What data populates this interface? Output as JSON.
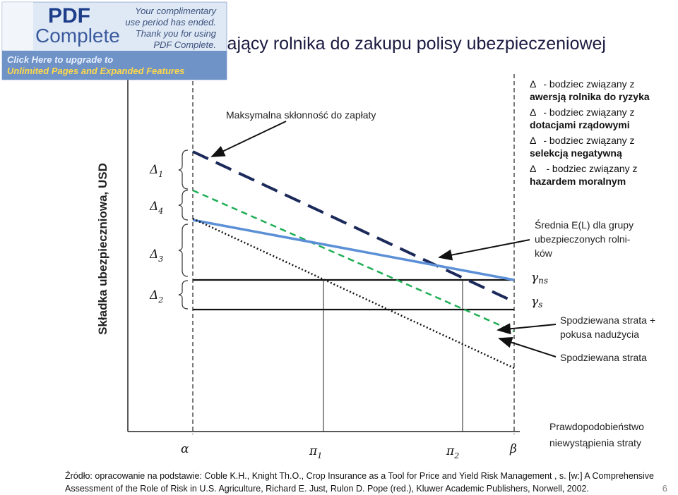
{
  "title": "iający rolnika do zakupu polisy ubezpieczeniowej",
  "banner": {
    "logo_top": "PDF",
    "logo_bottom": "Complete",
    "notice": [
      "Your complimentary",
      "use period has ended.",
      "Thank you for using",
      "PDF Complete."
    ],
    "upgrade": [
      "Click Here to upgrade to",
      "Unlimited Pages and Expanded Features"
    ]
  },
  "legend": [
    {
      "symbol": "Δ",
      "text": "- bodziec związany z",
      "bold": "awersją rolnika do ryzyka"
    },
    {
      "symbol": "Δ",
      "text": "- bodziec związany z",
      "bold": "dotacjami rządowymi"
    },
    {
      "symbol": "Δ",
      "text": "- bodziec związany z",
      "bold": "selekcją negatywną"
    },
    {
      "symbol": "Δ",
      "text": "- bodziec związany z",
      "bold": "hazardem moralnym"
    }
  ],
  "y_axis_label": "Składka ubezpieczniowa, USD",
  "braces": [
    {
      "symbol": "Δ",
      "sub": "1"
    },
    {
      "symbol": "Δ",
      "sub": "4"
    },
    {
      "symbol": "Δ",
      "sub": "3"
    },
    {
      "symbol": "Δ",
      "sub": "2"
    }
  ],
  "annotations": {
    "max": "Maksymalna skłonność do zapłaty",
    "mean": [
      "Średnia  E(L)  dla  grupy",
      "ubezpieczonych      rolni-",
      "ków"
    ],
    "gamma_ns": {
      "symbol": "γ",
      "sub": "ns"
    },
    "gamma_s": {
      "symbol": "γ",
      "sub": "s"
    },
    "hazard": [
      "Spodziewana strata +",
      "pokusa nadużycia"
    ],
    "loss": "Spodziewana strata",
    "x_axis": [
      "Prawdopodobieństwo",
      "niewystąpienia straty"
    ]
  },
  "x_labels": [
    {
      "symbol": "α",
      "sub": ""
    },
    {
      "symbol": "π",
      "sub": "1"
    },
    {
      "symbol": "π",
      "sub": "2"
    },
    {
      "symbol": "β",
      "sub": ""
    }
  ],
  "source": [
    "Źródło: opracowanie na podstawie: Coble K.H., Knight Th.O., Crop Insurance as a Tool for Price and Yield Risk Management , s. [w:] A Comprehensive",
    "Assessment of the Role of Risk in U.S. Agriculture, Richard E. Just, Rulon D. Pope (red.), Kluwer Academic Publishers, Norwell, 2002."
  ],
  "page_number": "6"
}
